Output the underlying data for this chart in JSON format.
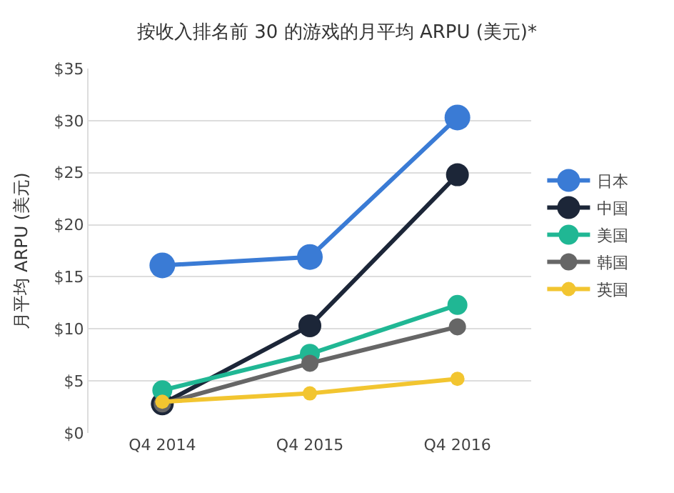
{
  "chart_data": {
    "type": "line",
    "title": "按收入排名前 30 的游戏的月平均 ARPU (美元)*",
    "ylabel": "月平均 ARPU (美元)",
    "categories": [
      "Q4 2014",
      "Q4 2015",
      "Q4 2016"
    ],
    "series": [
      {
        "name": "日本",
        "color": "#3a7bd5",
        "values": [
          16.1,
          16.9,
          30.3
        ]
      },
      {
        "name": "中国",
        "color": "#1c2638",
        "values": [
          2.8,
          10.3,
          24.8
        ]
      },
      {
        "name": "美国",
        "color": "#20b794",
        "values": [
          4.1,
          7.6,
          12.3
        ]
      },
      {
        "name": "韩国",
        "color": "#666666",
        "values": [
          2.8,
          6.7,
          10.2
        ]
      },
      {
        "name": "英国",
        "color": "#f2c530",
        "values": [
          3.0,
          3.8,
          5.2
        ]
      }
    ],
    "ylim": [
      0,
      35
    ],
    "yticks": [
      {
        "value": 0,
        "label": "$0"
      },
      {
        "value": 5,
        "label": "$5"
      },
      {
        "value": 10,
        "label": "$10"
      },
      {
        "value": 15,
        "label": "$15"
      },
      {
        "value": 20,
        "label": "$20"
      },
      {
        "value": 25,
        "label": "$25"
      },
      {
        "value": 30,
        "label": "$30"
      },
      {
        "value": 35,
        "label": "$35"
      }
    ],
    "grid": "y",
    "legend": "right",
    "marker": "circle",
    "line_style": "solid"
  }
}
